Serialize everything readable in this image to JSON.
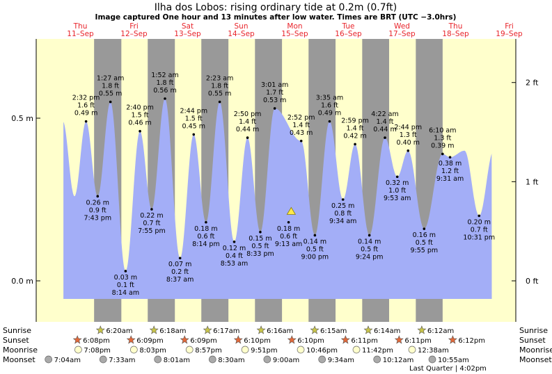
{
  "title": "Ilha dos Lobos: rising  ordinary tide at 0.2m (0.7ft)",
  "subtitle": "Image captured One hour and 13 minutes after low water. Times are BRT (UTC −3.0hrs)",
  "days": [
    {
      "name": "Thu",
      "date": "11–Sep"
    },
    {
      "name": "Fri",
      "date": "12–Sep"
    },
    {
      "name": "Sat",
      "date": "13–Sep"
    },
    {
      "name": "Sun",
      "date": "14–Sep"
    },
    {
      "name": "Mon",
      "date": "15–Sep"
    },
    {
      "name": "Tue",
      "date": "16–Sep"
    },
    {
      "name": "Wed",
      "date": "17–Sep"
    },
    {
      "name": "Thu",
      "date": "18–Sep"
    },
    {
      "name": "Fri",
      "date": "19–Sep"
    }
  ],
  "left_axis": [
    {
      "label": "0.5 m",
      "value": 0.5
    },
    {
      "label": "0.0 m",
      "value": 0.0
    }
  ],
  "right_axis": [
    {
      "label": "2 ft",
      "value": 0.6096
    },
    {
      "label": "1 ft",
      "value": 0.3048
    },
    {
      "label": "0 ft",
      "value": 0.0
    }
  ],
  "chart_data": {
    "type": "area",
    "ylim_m": [
      -0.1,
      0.75
    ],
    "x_unit": "hours since 11-Sep 00:00",
    "extremes": [
      {
        "t": 14.53,
        "m": 0.49,
        "time": "2:32 pm",
        "ft": "1.6 ft",
        "meters": "0.49 m",
        "kind": "high"
      },
      {
        "t": 19.72,
        "m": 0.26,
        "time": "7:43 pm",
        "ft": "0.9 ft",
        "meters": "0.26 m",
        "kind": "low"
      },
      {
        "t": 25.45,
        "m": 0.55,
        "time": "1:27 am",
        "ft": "1.8 ft",
        "meters": "0.55 m",
        "kind": "high"
      },
      {
        "t": 32.23,
        "m": 0.03,
        "time": "8:14 am",
        "ft": "0.1 ft",
        "meters": "0.03 m",
        "kind": "low"
      },
      {
        "t": 38.67,
        "m": 0.46,
        "time": "2:40 pm",
        "ft": "1.5 ft",
        "meters": "0.46 m",
        "kind": "high"
      },
      {
        "t": 43.92,
        "m": 0.22,
        "time": "7:55 pm",
        "ft": "0.7 ft",
        "meters": "0.22 m",
        "kind": "low"
      },
      {
        "t": 49.87,
        "m": 0.56,
        "time": "1:52 am",
        "ft": "1.8 ft",
        "meters": "0.56 m",
        "kind": "high"
      },
      {
        "t": 56.62,
        "m": 0.07,
        "time": "8:37 am",
        "ft": "0.2 ft",
        "meters": "0.07 m",
        "kind": "low"
      },
      {
        "t": 62.73,
        "m": 0.45,
        "time": "2:44 pm",
        "ft": "1.5 ft",
        "meters": "0.45 m",
        "kind": "high"
      },
      {
        "t": 68.23,
        "m": 0.18,
        "time": "8:14 pm",
        "ft": "0.6 ft",
        "meters": "0.18 m",
        "kind": "low"
      },
      {
        "t": 74.38,
        "m": 0.55,
        "time": "2:23 am",
        "ft": "1.8 ft",
        "meters": "0.55 m",
        "kind": "high"
      },
      {
        "t": 80.88,
        "m": 0.12,
        "time": "8:53 am",
        "ft": "0.4 ft",
        "meters": "0.12 m",
        "kind": "low"
      },
      {
        "t": 86.83,
        "m": 0.44,
        "time": "2:50 pm",
        "ft": "1.4 ft",
        "meters": "0.44 m",
        "kind": "high"
      },
      {
        "t": 92.55,
        "m": 0.15,
        "time": "8:33 pm",
        "ft": "0.5 ft",
        "meters": "0.15 m",
        "kind": "low"
      },
      {
        "t": 99.02,
        "m": 0.53,
        "time": "3:01 am",
        "ft": "1.7 ft",
        "meters": "0.53 m",
        "kind": "high"
      },
      {
        "t": 105.22,
        "m": 0.18,
        "time": "9:13 am",
        "ft": "0.6 ft",
        "meters": "0.18 m",
        "kind": "now"
      },
      {
        "t": 110.87,
        "m": 0.43,
        "time": "2:52 pm",
        "ft": "1.4 ft",
        "meters": "0.43 m",
        "kind": "high"
      },
      {
        "t": 117.0,
        "m": 0.14,
        "time": "9:00 pm",
        "ft": "0.5 ft",
        "meters": "0.14 m",
        "kind": "low"
      },
      {
        "t": 123.58,
        "m": 0.49,
        "time": "3:35 am",
        "ft": "1.6 ft",
        "meters": "0.49 m",
        "kind": "high"
      },
      {
        "t": 129.57,
        "m": 0.25,
        "time": "9:34 am",
        "ft": "0.8 ft",
        "meters": "0.25 m",
        "kind": "low"
      },
      {
        "t": 134.98,
        "m": 0.42,
        "time": "2:59 pm",
        "ft": "1.4 ft",
        "meters": "0.42 m",
        "kind": "high"
      },
      {
        "t": 141.4,
        "m": 0.14,
        "time": "9:24 pm",
        "ft": "0.5 ft",
        "meters": "0.14 m",
        "kind": "low"
      },
      {
        "t": 148.37,
        "m": 0.44,
        "time": "4:22 am",
        "ft": "1.4 ft",
        "meters": "0.44 m",
        "kind": "high"
      },
      {
        "t": 153.88,
        "m": 0.32,
        "time": "9:53 am",
        "ft": "1.0 ft",
        "meters": "0.32 m",
        "kind": "low"
      },
      {
        "t": 158.73,
        "m": 0.4,
        "time": "2:44 pm",
        "ft": "1.3 ft",
        "meters": "0.40 m",
        "kind": "high"
      },
      {
        "t": 165.92,
        "m": 0.16,
        "time": "9:55 pm",
        "ft": "0.5 ft",
        "meters": "0.16 m",
        "kind": "low"
      },
      {
        "t": 174.17,
        "m": 0.39,
        "time": "6:10 am",
        "ft": "1.3 ft",
        "meters": "0.39 m",
        "kind": "high"
      },
      {
        "t": 177.52,
        "m": 0.38,
        "time": "9:31 am",
        "ft": "1.2 ft",
        "meters": "0.38 m",
        "kind": "low"
      },
      {
        "t": 184.0,
        "m": 0.4,
        "time": "",
        "ft": "",
        "meters": "",
        "kind": "hidden"
      },
      {
        "t": 190.52,
        "m": 0.2,
        "time": "10:31 pm",
        "ft": "0.7 ft",
        "meters": "0.20 m",
        "kind": "low"
      }
    ],
    "now_t": 106.4,
    "now_m": 0.2
  },
  "astro": {
    "row_labels": [
      "Sunrise",
      "Sunset",
      "Moonrise",
      "Moonset"
    ],
    "sunrise": [
      "6:20am",
      "6:18am",
      "6:17am",
      "6:16am",
      "6:15am",
      "6:14am",
      "6:12am"
    ],
    "sunset": [
      "6:08pm",
      "6:09pm",
      "6:09pm",
      "6:10pm",
      "6:10pm",
      "6:11pm",
      "6:11pm",
      "6:12pm"
    ],
    "moonrise": [
      "7:08pm",
      "8:03pm",
      "8:57pm",
      "9:51pm",
      "10:46pm",
      "11:42pm",
      "12:38am"
    ],
    "moonset": [
      "7:04am",
      "7:33am",
      "8:01am",
      "8:30am",
      "9:00am",
      "9:34am",
      "10:12am",
      "10:55am"
    ],
    "moon_phase": "Last Quarter | 4:02pm"
  },
  "colors": {
    "day_bg": "#ffffcc",
    "night_bg": "#999999",
    "water": "#a3aef7",
    "sun_icon": "#c8c44b",
    "sunset_icon": "#e2693a",
    "moonrise_icon": "#ffffcc",
    "moonset_icon": "#aaaaaa",
    "day_text": "#e8232a"
  }
}
